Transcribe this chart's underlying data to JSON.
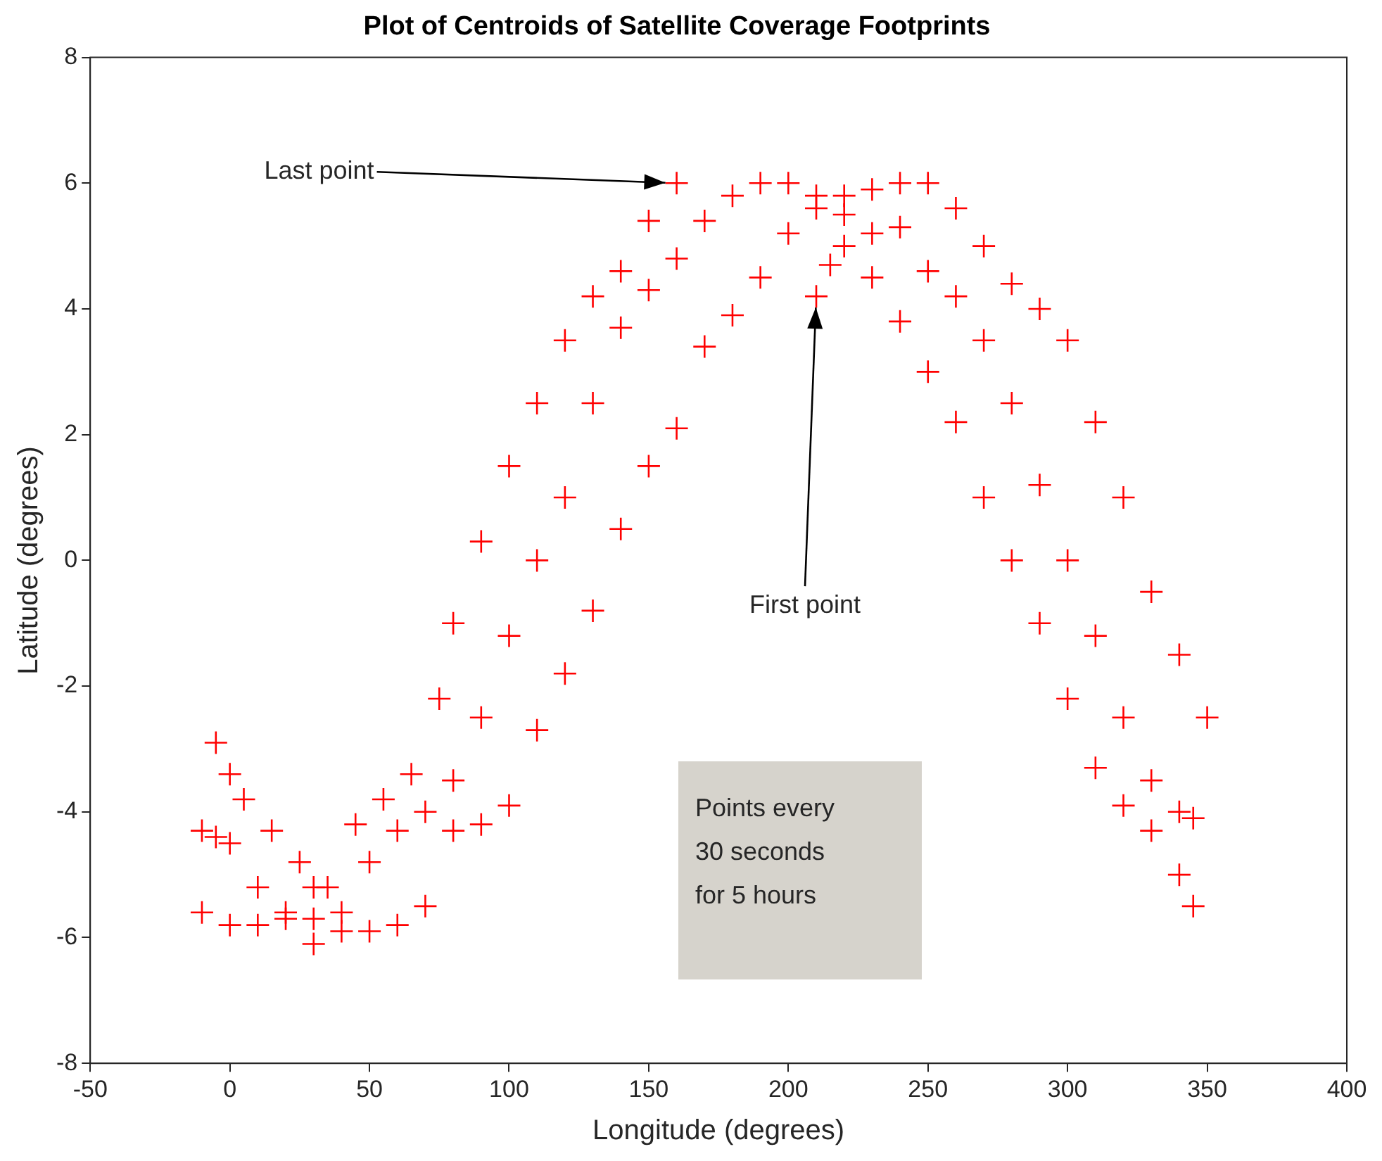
{
  "chart_data": {
    "type": "scatter",
    "title": "Plot of Centroids of Satellite Coverage Footprints",
    "xlabel": "Longitude (degrees)",
    "ylabel": "Latitude (degrees)",
    "xlim": [
      -50,
      400
    ],
    "xticks": [
      -50,
      0,
      50,
      100,
      150,
      200,
      250,
      300,
      350,
      400
    ],
    "ylim": [
      -8,
      8
    ],
    "yticks": [
      -8,
      -6,
      -4,
      -2,
      0,
      2,
      4,
      6,
      8
    ],
    "grid": false,
    "legend": false,
    "marker": "cross",
    "series": [
      {
        "color": "#ff0000",
        "x": [
          210,
          215,
          220,
          230,
          240,
          250,
          260,
          270,
          280,
          290,
          300,
          310,
          320,
          330,
          340,
          345,
          -10,
          0,
          10,
          20,
          30,
          40,
          50,
          60,
          70,
          80,
          90,
          100,
          110,
          120,
          130,
          140,
          150,
          160,
          170,
          180,
          190,
          200,
          210,
          220,
          230,
          240,
          250,
          260,
          270,
          280,
          290,
          300,
          310,
          320,
          330,
          340,
          350,
          -10,
          -5,
          0,
          10,
          20,
          30,
          40,
          50,
          60,
          70,
          80,
          90,
          100,
          110,
          120,
          130,
          140,
          150,
          160,
          170,
          180,
          190,
          200,
          210,
          220,
          230,
          240,
          250,
          260,
          270,
          280,
          290,
          300,
          310,
          320,
          330,
          340,
          345,
          -5,
          0,
          5,
          15,
          25,
          30,
          35,
          45,
          55,
          65,
          75,
          80,
          90,
          100,
          110,
          120,
          130,
          140,
          150,
          160
        ],
        "values": [
          4.2,
          4.7,
          5,
          4.5,
          3.8,
          3,
          2.2,
          1,
          0,
          -1,
          -2.2,
          -3.3,
          -3.9,
          -4.3,
          -5,
          -5.5,
          -5.6,
          -5.8,
          -5.8,
          -5.7,
          -6.1,
          -5.9,
          -5.9,
          -5.8,
          -5.5,
          -4.3,
          -4.2,
          -3.9,
          -2.7,
          -1.8,
          -0.8,
          0.5,
          1.5,
          2.1,
          3.4,
          3.9,
          4.5,
          5.2,
          5.6,
          5.8,
          5.9,
          6,
          6,
          5.6,
          5,
          4.4,
          4,
          3.5,
          2.2,
          1,
          -0.5,
          -1.5,
          -2.5,
          -4.3,
          -4.4,
          -4.5,
          -5.2,
          -5.6,
          -5.7,
          -5.6,
          -4.8,
          -4.3,
          -4,
          -3.5,
          -2.5,
          -1.2,
          0,
          1,
          2.5,
          3.7,
          4.3,
          4.8,
          5.4,
          5.8,
          6,
          6,
          5.8,
          5.5,
          5.2,
          5.3,
          4.6,
          4.2,
          3.5,
          2.5,
          1.2,
          0,
          -1.2,
          -2.5,
          -3.5,
          -4,
          -4.1,
          -2.9,
          -3.4,
          -3.8,
          -4.3,
          -4.8,
          -5.2,
          -5.2,
          -4.2,
          -3.8,
          -3.4,
          -2.2,
          -1,
          0.3,
          1.5,
          2.5,
          3.5,
          4.2,
          4.6,
          5.4,
          6
        ]
      }
    ],
    "annotations": [
      {
        "text": "Last point",
        "x": 160,
        "y": 6
      },
      {
        "text": "First point",
        "x": 210,
        "y": 4.2
      },
      "Points every 30 seconds for 5 hours"
    ]
  }
}
